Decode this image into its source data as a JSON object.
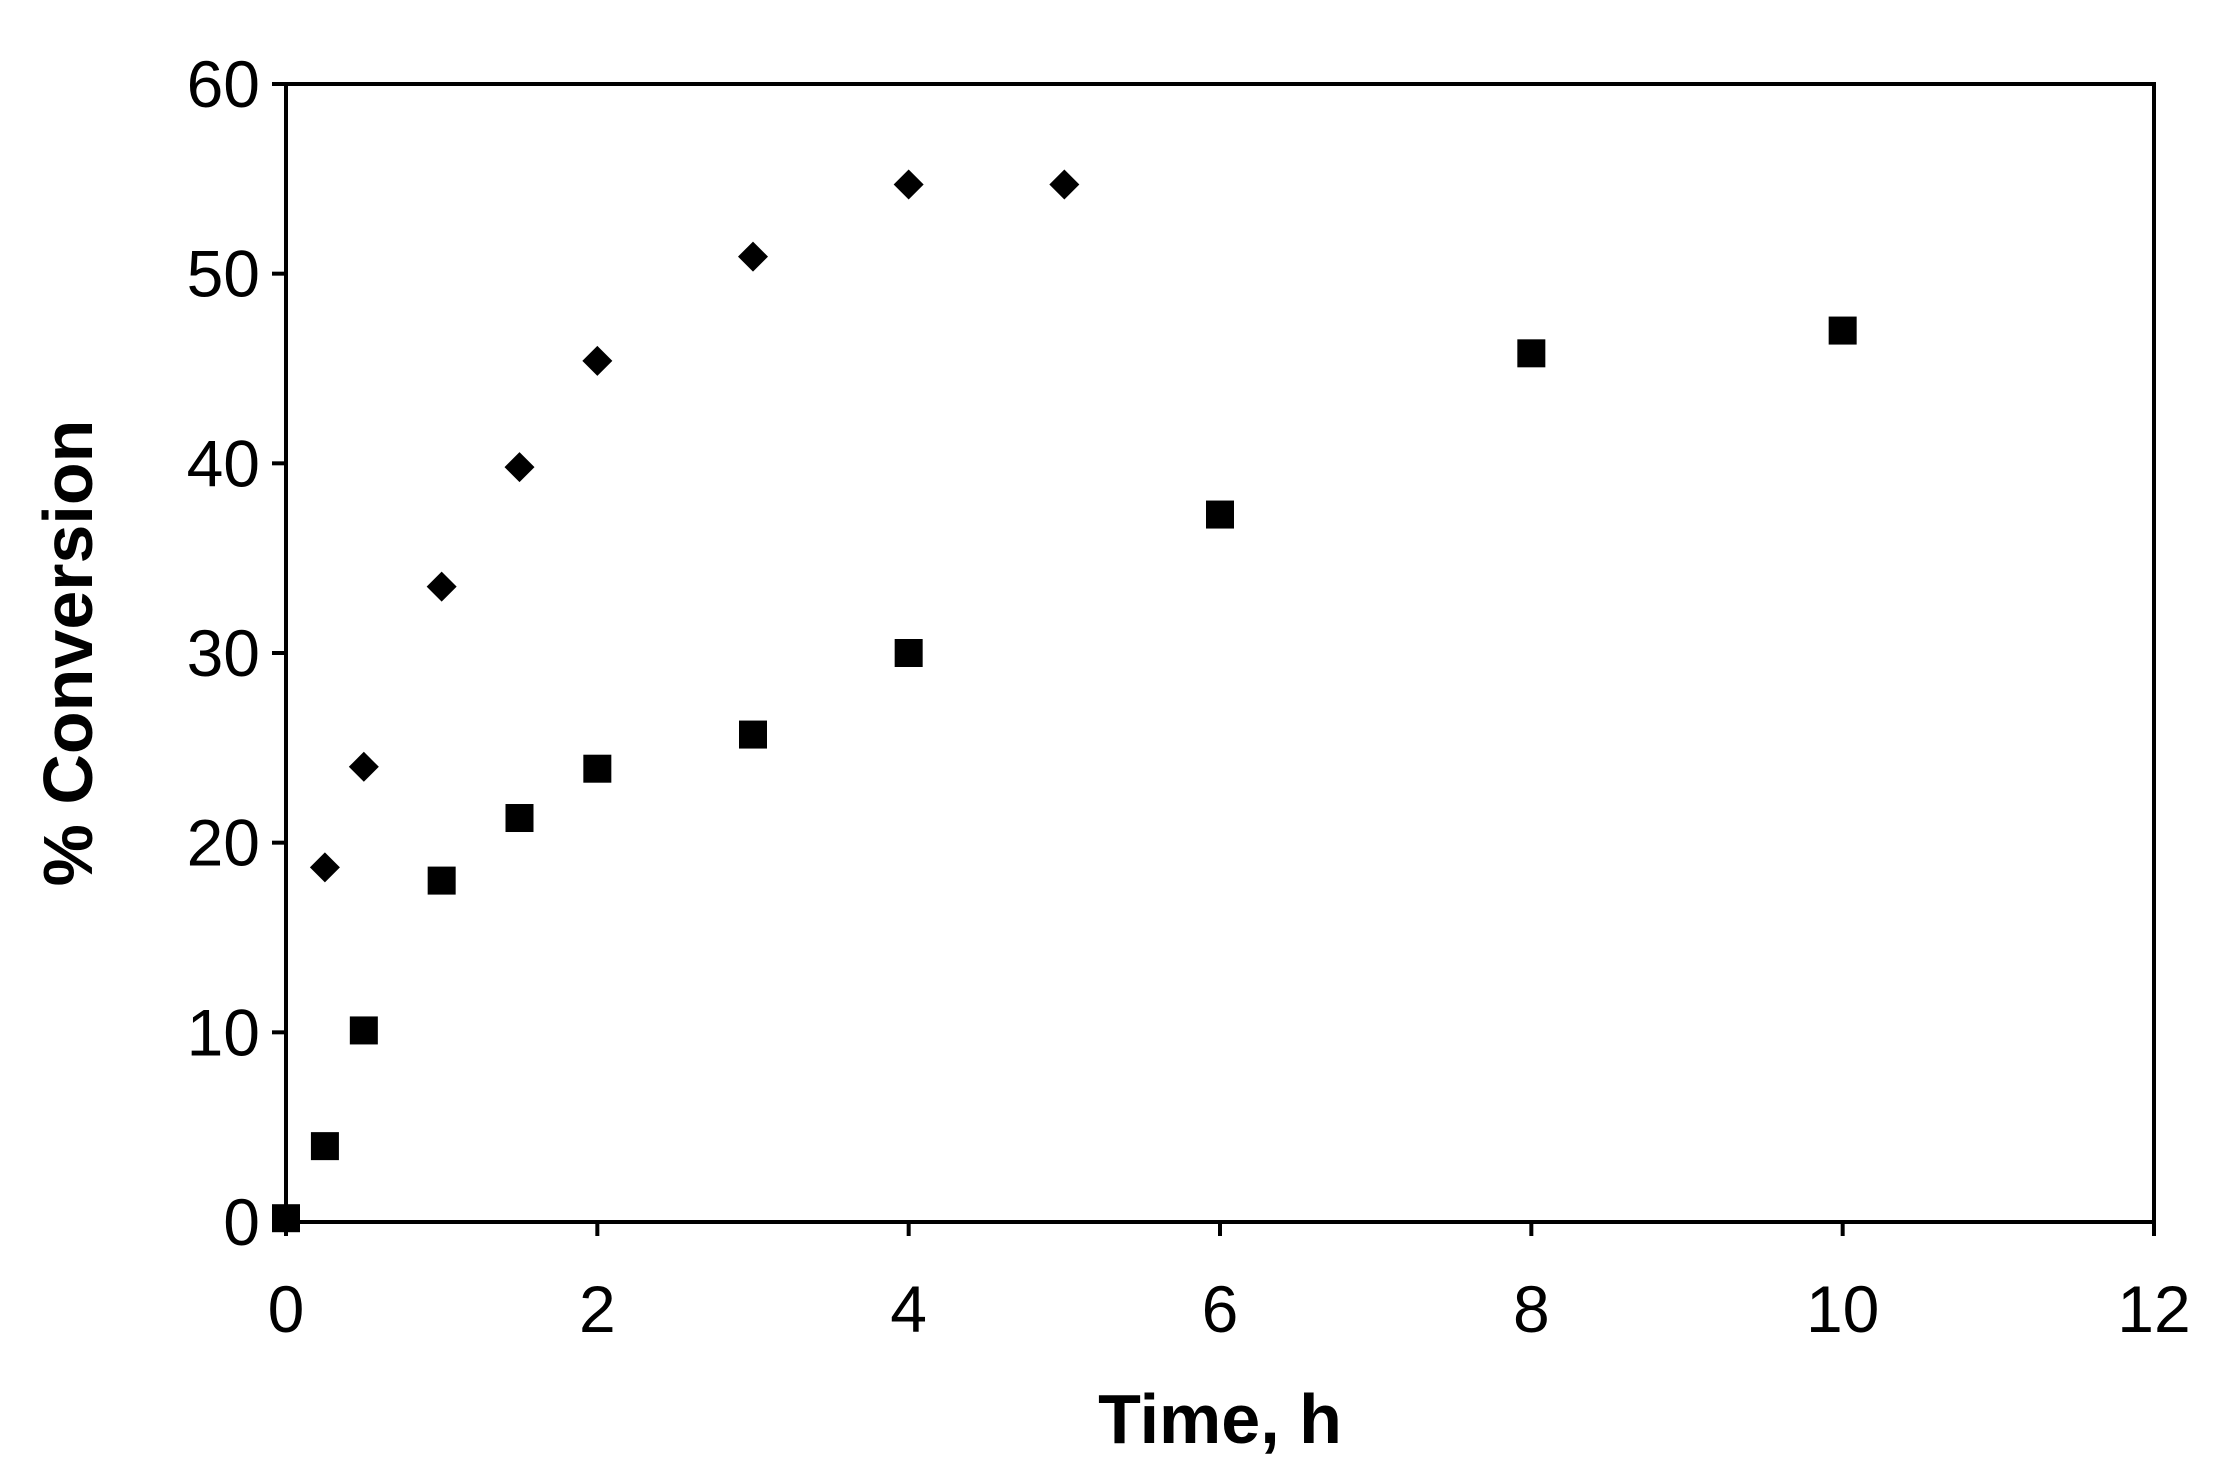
{
  "chart_data": {
    "type": "scatter",
    "title": "",
    "xlabel": "Time, h",
    "ylabel": "% Conversion",
    "xlim": [
      0,
      12
    ],
    "ylim": [
      0,
      60
    ],
    "xticks": [
      0,
      2,
      4,
      6,
      8,
      10,
      12
    ],
    "yticks": [
      0,
      10,
      20,
      30,
      40,
      50,
      60
    ],
    "grid": false,
    "legend": "none",
    "series": [
      {
        "marker": "diamond",
        "color": "#000000",
        "points": [
          {
            "x": 0.25,
            "y": 18.7
          },
          {
            "x": 0.5,
            "y": 24.0
          },
          {
            "x": 1.0,
            "y": 33.5
          },
          {
            "x": 1.5,
            "y": 39.8
          },
          {
            "x": 2.0,
            "y": 45.4
          },
          {
            "x": 3.0,
            "y": 50.9
          },
          {
            "x": 4.0,
            "y": 54.7
          },
          {
            "x": 5.0,
            "y": 54.7
          }
        ]
      },
      {
        "marker": "square",
        "color": "#000000",
        "points": [
          {
            "x": 0.0,
            "y": 0.2
          },
          {
            "x": 0.25,
            "y": 4.0
          },
          {
            "x": 0.5,
            "y": 10.1
          },
          {
            "x": 1.0,
            "y": 18.0
          },
          {
            "x": 1.5,
            "y": 21.3
          },
          {
            "x": 2.0,
            "y": 23.9
          },
          {
            "x": 3.0,
            "y": 25.7
          },
          {
            "x": 4.0,
            "y": 30.0
          },
          {
            "x": 6.0,
            "y": 37.3
          },
          {
            "x": 8.0,
            "y": 45.8
          },
          {
            "x": 10.0,
            "y": 47.0
          }
        ]
      }
    ]
  }
}
